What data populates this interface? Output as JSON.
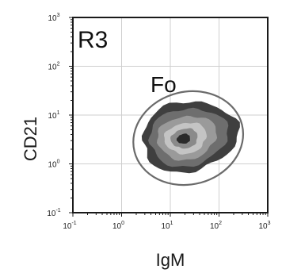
{
  "chart_data": {
    "type": "contour",
    "gate_label": "R3",
    "population_label": "Fo",
    "xlabel": "IgM",
    "ylabel": "CD21",
    "x_scale": "log",
    "y_scale": "log",
    "xlim": [
      0.1,
      1000
    ],
    "ylim": [
      0.1,
      1000
    ],
    "grid": true,
    "x_ticks": [
      {
        "base": "10",
        "exp": "-1",
        "value": 0.1
      },
      {
        "base": "10",
        "exp": "0",
        "value": 1
      },
      {
        "base": "10",
        "exp": "1",
        "value": 10
      },
      {
        "base": "10",
        "exp": "2",
        "value": 100
      },
      {
        "base": "10",
        "exp": "3",
        "value": 1000
      }
    ],
    "y_ticks": [
      {
        "base": "10",
        "exp": "-1",
        "value": 0.1
      },
      {
        "base": "10",
        "exp": "0",
        "value": 1
      },
      {
        "base": "10",
        "exp": "1",
        "value": 10
      },
      {
        "base": "10",
        "exp": "2",
        "value": 100
      },
      {
        "base": "10",
        "exp": "3",
        "value": 1000
      }
    ],
    "population": {
      "center": [
        18,
        3.2
      ],
      "outer_extent_x": [
        2.5,
        240
      ],
      "outer_extent_y": [
        0.7,
        19
      ],
      "levels": [
        {
          "level": 1,
          "color": "#3f3f3f"
        },
        {
          "level": 2,
          "color": "#6e6e6e"
        },
        {
          "level": 3,
          "color": "#9a9a9a"
        },
        {
          "level": 4,
          "color": "#c4c4c4"
        },
        {
          "level": 5,
          "color": "#8a8a8a"
        },
        {
          "level": 6,
          "color": "#2a2a2a"
        }
      ]
    },
    "gate_ellipse": {
      "center": [
        18,
        3.8
      ],
      "x_range": [
        1.7,
        320
      ],
      "y_range": [
        0.38,
        30
      ],
      "color": "#6b6b6b"
    }
  }
}
